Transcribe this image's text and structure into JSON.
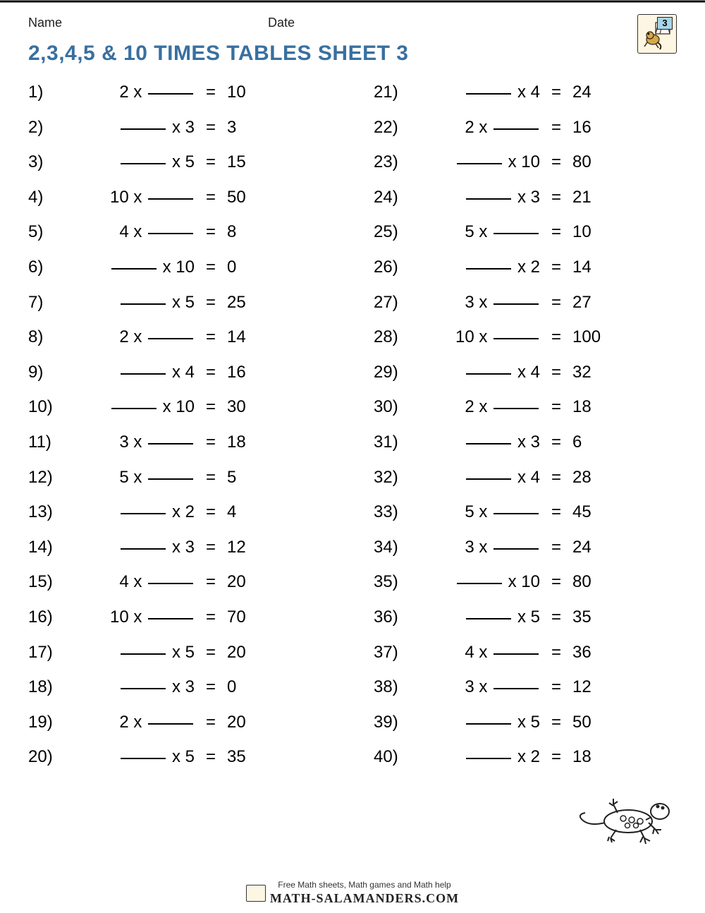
{
  "header": {
    "name_label": "Name",
    "date_label": "Date",
    "logo_number": "3"
  },
  "title": "2,3,4,5 & 10 TIMES TABLES SHEET 3",
  "problems_left": [
    {
      "n": "1)",
      "pre": "2 x",
      "blank": "after",
      "post": "",
      "ans": "10"
    },
    {
      "n": "2)",
      "pre": "",
      "blank": "before",
      "post": "x 3",
      "ans": "3"
    },
    {
      "n": "3)",
      "pre": "",
      "blank": "before",
      "post": "x 5",
      "ans": "15"
    },
    {
      "n": "4)",
      "pre": "10 x",
      "blank": "after",
      "post": "",
      "ans": "50"
    },
    {
      "n": "5)",
      "pre": "4 x",
      "blank": "after",
      "post": "",
      "ans": "8"
    },
    {
      "n": "6)",
      "pre": "",
      "blank": "before",
      "post": "x 10",
      "ans": "0"
    },
    {
      "n": "7)",
      "pre": "",
      "blank": "before",
      "post": "x 5",
      "ans": "25"
    },
    {
      "n": "8)",
      "pre": "2 x",
      "blank": "after",
      "post": "",
      "ans": "14"
    },
    {
      "n": "9)",
      "pre": "",
      "blank": "before",
      "post": "x 4",
      "ans": "16"
    },
    {
      "n": "10)",
      "pre": "",
      "blank": "before",
      "post": "x 10",
      "ans": "30"
    },
    {
      "n": "11)",
      "pre": "3 x",
      "blank": "after",
      "post": "",
      "ans": "18"
    },
    {
      "n": "12)",
      "pre": "5 x",
      "blank": "after",
      "post": "",
      "ans": "5"
    },
    {
      "n": "13)",
      "pre": "",
      "blank": "before",
      "post": "x 2",
      "ans": "4"
    },
    {
      "n": "14)",
      "pre": "",
      "blank": "before",
      "post": "x 3",
      "ans": "12"
    },
    {
      "n": "15)",
      "pre": "4 x",
      "blank": "after",
      "post": "",
      "ans": "20"
    },
    {
      "n": "16)",
      "pre": "10 x",
      "blank": "after",
      "post": "",
      "ans": "70"
    },
    {
      "n": "17)",
      "pre": "",
      "blank": "before",
      "post": "x 5",
      "ans": "20"
    },
    {
      "n": "18)",
      "pre": "",
      "blank": "before",
      "post": "x 3",
      "ans": "0"
    },
    {
      "n": "19)",
      "pre": "2 x",
      "blank": "after",
      "post": "",
      "ans": "20"
    },
    {
      "n": "20)",
      "pre": "",
      "blank": "before",
      "post": "x 5",
      "ans": "35"
    }
  ],
  "problems_right": [
    {
      "n": "21)",
      "pre": "",
      "blank": "before",
      "post": "x 4",
      "ans": "24"
    },
    {
      "n": "22)",
      "pre": "2 x",
      "blank": "after",
      "post": "",
      "ans": "16"
    },
    {
      "n": "23)",
      "pre": "",
      "blank": "before",
      "post": "x 10",
      "ans": "80"
    },
    {
      "n": "24)",
      "pre": "",
      "blank": "before",
      "post": "x 3",
      "ans": "21"
    },
    {
      "n": "25)",
      "pre": "5 x",
      "blank": "after",
      "post": "",
      "ans": "10"
    },
    {
      "n": "26)",
      "pre": "",
      "blank": "before",
      "post": "x 2",
      "ans": "14"
    },
    {
      "n": "27)",
      "pre": "3 x",
      "blank": "after",
      "post": "",
      "ans": "27"
    },
    {
      "n": "28)",
      "pre": "10 x",
      "blank": "after",
      "post": "",
      "ans": "100"
    },
    {
      "n": "29)",
      "pre": "",
      "blank": "before",
      "post": "x 4",
      "ans": "32"
    },
    {
      "n": "30)",
      "pre": "2 x",
      "blank": "after",
      "post": "",
      "ans": "18"
    },
    {
      "n": "31)",
      "pre": "",
      "blank": "before",
      "post": "x 3",
      "ans": "6"
    },
    {
      "n": "32)",
      "pre": "",
      "blank": "before",
      "post": "x 4",
      "ans": "28"
    },
    {
      "n": "33)",
      "pre": "5 x",
      "blank": "after",
      "post": "",
      "ans": "45"
    },
    {
      "n": "34)",
      "pre": "3 x",
      "blank": "after",
      "post": "",
      "ans": "24"
    },
    {
      "n": "35)",
      "pre": "",
      "blank": "before",
      "post": "x 10",
      "ans": "80"
    },
    {
      "n": "36)",
      "pre": "",
      "blank": "before",
      "post": "x 5",
      "ans": "35"
    },
    {
      "n": "37)",
      "pre": "4 x",
      "blank": "after",
      "post": "",
      "ans": "36"
    },
    {
      "n": "38)",
      "pre": "3 x",
      "blank": "after",
      "post": "",
      "ans": "12"
    },
    {
      "n": "39)",
      "pre": "",
      "blank": "before",
      "post": "x 5",
      "ans": "50"
    },
    {
      "n": "40)",
      "pre": "",
      "blank": "before",
      "post": "x 2",
      "ans": "18"
    }
  ],
  "footer": {
    "tagline": "Free Math sheets, Math games and Math help",
    "site": "MATH-SALAMANDERS.COM"
  },
  "colors": {
    "title": "#3870a0",
    "text": "#000000",
    "page_bg": "#ffffff"
  }
}
